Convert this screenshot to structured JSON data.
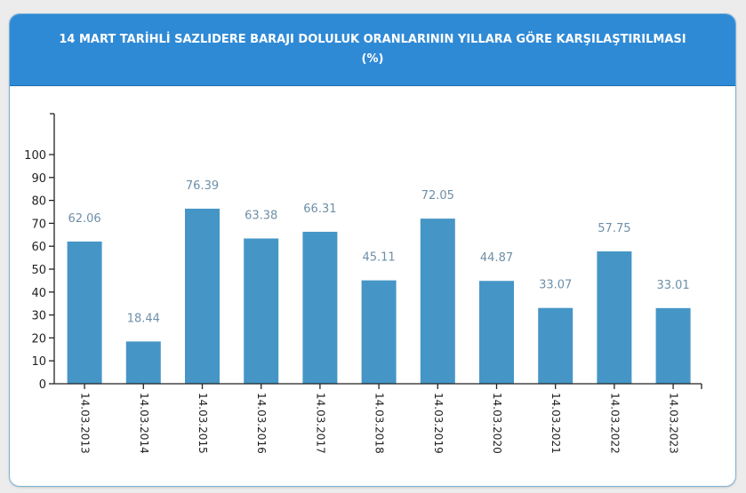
{
  "header": {
    "title_line1": "14 MART TARİHLİ SAZLIDERE BARAJI DOLULUK ORANLARININ YILLARA GÖRE KARŞILAŞTIRILMASI",
    "title_line2": "(%)"
  },
  "colors": {
    "header_bg": "#2f8ad6",
    "bar": "#4596c6",
    "value_label": "#6e8fa8",
    "axis": "#222222"
  },
  "chart_data": {
    "type": "bar",
    "title": "14 MART TARİHLİ SAZLIDERE BARAJI DOLULUK ORANLARININ YILLARA GÖRE KARŞILAŞTIRILMASI (%)",
    "xlabel": "",
    "ylabel": "",
    "categories": [
      "14.03.2013",
      "14.03.2014",
      "14.03.2015",
      "14.03.2016",
      "14.03.2017",
      "14.03.2018",
      "14.03.2019",
      "14.03.2020",
      "14.03.2021",
      "14.03.2022",
      "14.03.2023"
    ],
    "values": [
      62.06,
      18.44,
      76.39,
      63.38,
      66.31,
      45.11,
      72.05,
      44.87,
      33.07,
      57.75,
      33.01
    ],
    "value_labels": [
      "62.06",
      "18.44",
      "76.39",
      "63.38",
      "66.31",
      "45.11",
      "72.05",
      "44.87",
      "33.07",
      "57.75",
      "33.01"
    ],
    "yticks": [
      0,
      10,
      20,
      30,
      40,
      50,
      60,
      70,
      80,
      90,
      100
    ],
    "ylim": [
      0,
      100
    ],
    "grid": false,
    "legend": null
  }
}
